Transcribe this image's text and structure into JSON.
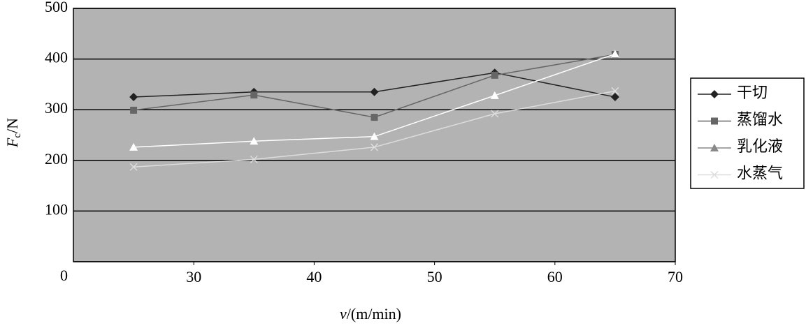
{
  "chart_data": {
    "type": "line",
    "x": [
      25,
      35,
      45,
      55,
      65
    ],
    "series": [
      {
        "name": "干切",
        "color": "#222222",
        "marker": "diamond",
        "values": [
          325,
          335,
          335,
          373,
          325
        ]
      },
      {
        "name": "蒸馏水",
        "color": "#666666",
        "marker": "square",
        "values": [
          299,
          329,
          285,
          368,
          409
        ]
      },
      {
        "name": "乳化液",
        "color": "#ffffff",
        "marker": "triangle",
        "values": [
          226,
          238,
          247,
          328,
          410
        ]
      },
      {
        "name": "水蒸气",
        "color": "#dddddd",
        "marker": "x",
        "values": [
          187,
          202,
          226,
          292,
          337
        ]
      }
    ],
    "xlim": [
      20,
      70
    ],
    "xticks": [
      30,
      40,
      50,
      60,
      70
    ],
    "ylim": [
      0,
      500
    ],
    "yticks": [
      0,
      100,
      200,
      300,
      400,
      500
    ],
    "xlabel": [
      "v",
      "/(m/min)"
    ],
    "ylabel": [
      "F",
      "c",
      "/N"
    ],
    "grid": true,
    "background": "#b3b3b3",
    "legend": "right"
  }
}
